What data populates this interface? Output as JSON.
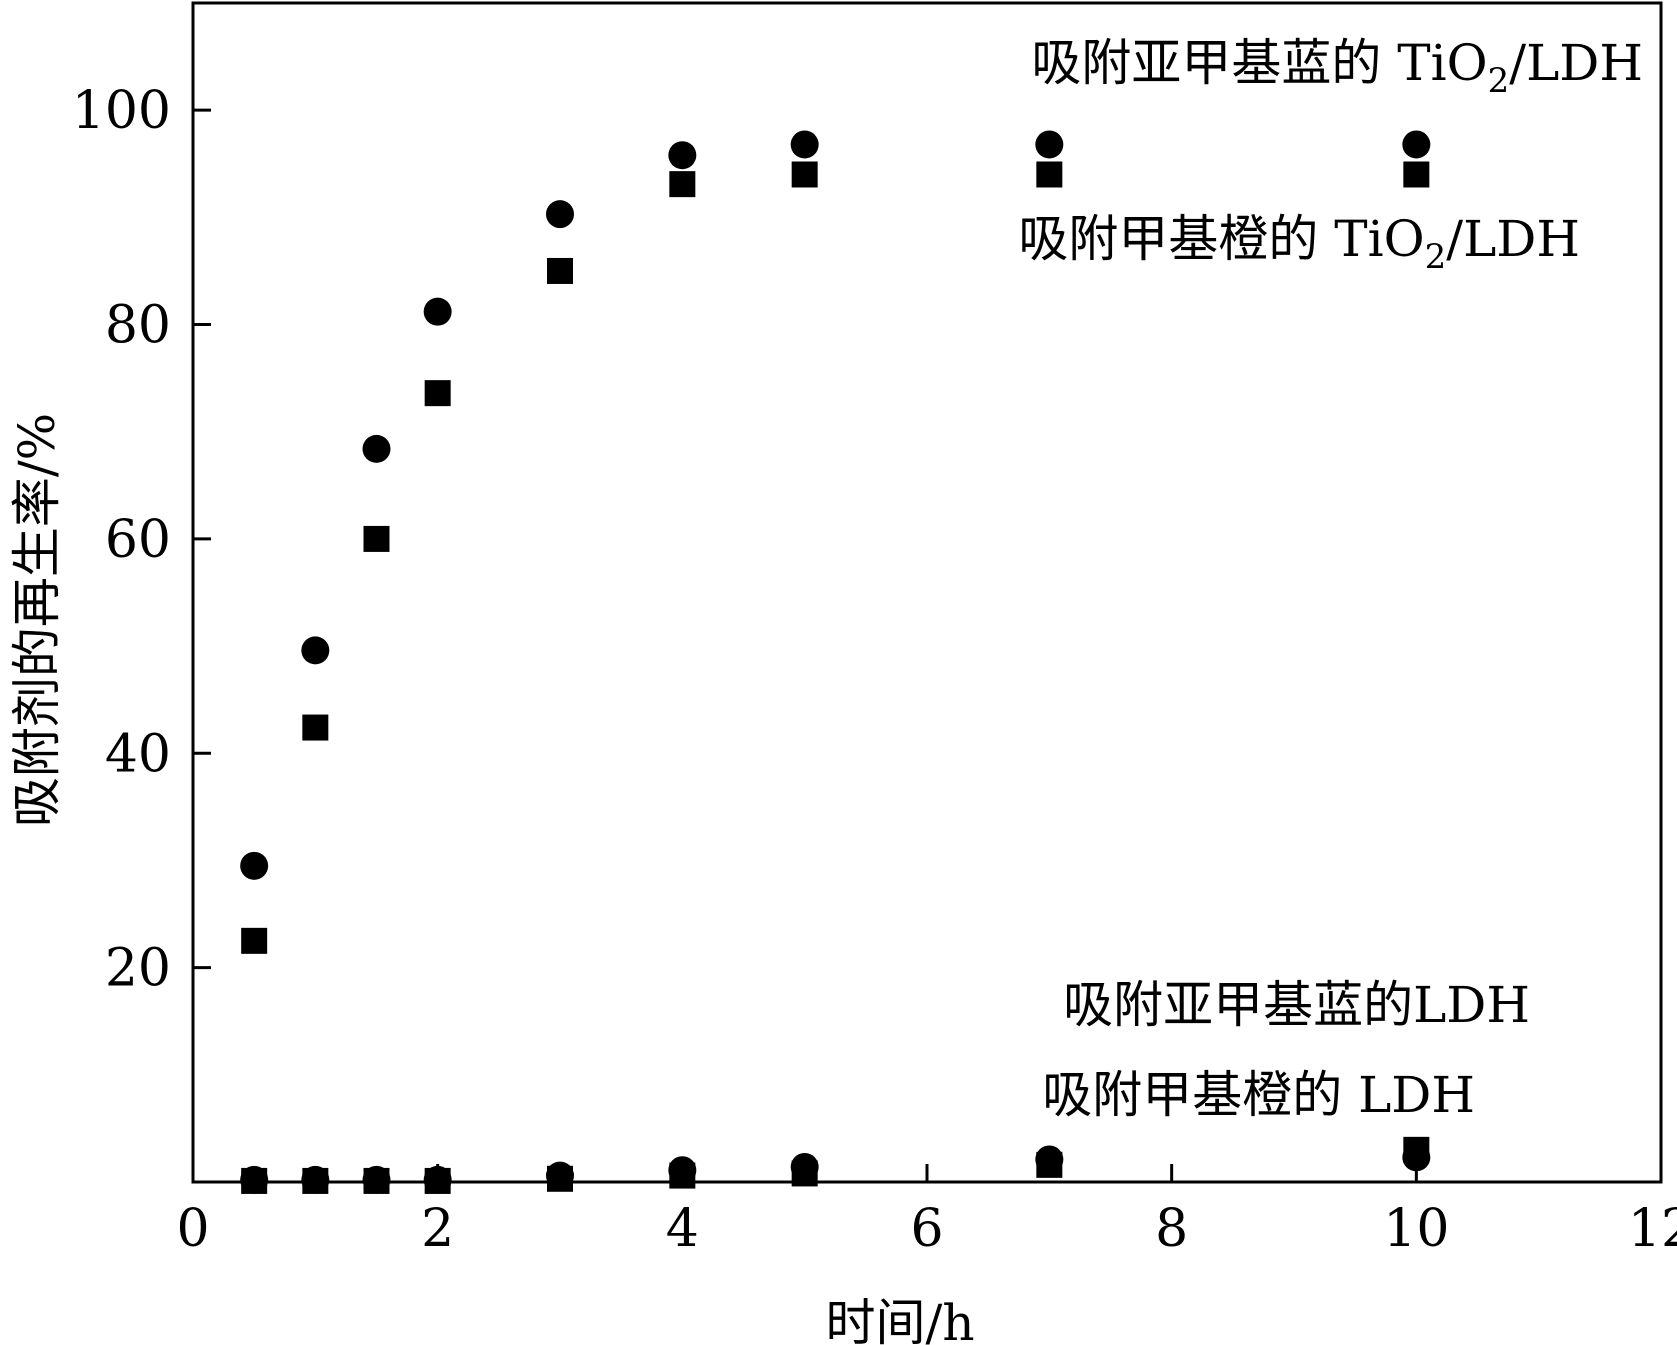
{
  "chart_data": {
    "type": "scatter",
    "xlabel": "时间/h",
    "ylabel": "吸附剂的再生率/%",
    "xlim": [
      0,
      12
    ],
    "ylim": [
      0,
      110
    ],
    "x_ticks": [
      0,
      2,
      4,
      6,
      8,
      10,
      12
    ],
    "y_ticks": [
      20,
      40,
      60,
      80,
      100
    ],
    "x_tick_labels": [
      "0",
      "2",
      "4",
      "6",
      "8",
      "10",
      "12"
    ],
    "y_tick_labels": [
      "20",
      "40",
      "60",
      "80",
      "100"
    ],
    "grid": false,
    "series": [
      {
        "marker": "circle",
        "color": "#000000",
        "points": [
          [
            0.5,
            29.5
          ],
          [
            1.0,
            49.6
          ],
          [
            1.5,
            68.4
          ],
          [
            2.0,
            81.2
          ],
          [
            3.0,
            90.3
          ],
          [
            4.0,
            95.8
          ],
          [
            5.0,
            96.8
          ],
          [
            7.0,
            96.8
          ],
          [
            10.0,
            96.8
          ]
        ]
      },
      {
        "marker": "square",
        "color": "#000000",
        "points": [
          [
            0.5,
            22.5
          ],
          [
            1.0,
            42.4
          ],
          [
            1.5,
            60.0
          ],
          [
            2.0,
            73.6
          ],
          [
            3.0,
            85.0
          ],
          [
            4.0,
            93.1
          ],
          [
            5.0,
            94.0
          ],
          [
            7.0,
            94.0
          ],
          [
            10.0,
            94.0
          ]
        ]
      },
      {
        "marker": "circle",
        "color": "#000000",
        "points": [
          [
            0.5,
            0.2
          ],
          [
            1.0,
            0.2
          ],
          [
            1.5,
            0.2
          ],
          [
            2.0,
            0.2
          ],
          [
            3.0,
            0.6
          ],
          [
            4.0,
            1.1
          ],
          [
            5.0,
            1.4
          ],
          [
            7.0,
            2.1
          ],
          [
            10.0,
            2.3
          ]
        ]
      },
      {
        "marker": "square",
        "color": "#000000",
        "points": [
          [
            0.5,
            0.1
          ],
          [
            1.0,
            0.1
          ],
          [
            1.5,
            0.1
          ],
          [
            2.0,
            0.1
          ],
          [
            3.0,
            0.3
          ],
          [
            4.0,
            0.6
          ],
          [
            5.0,
            0.8
          ],
          [
            7.0,
            1.6
          ],
          [
            10.0,
            3.0
          ]
        ]
      }
    ],
    "annotations": [
      {
        "main": "吸附亚甲基蓝的 TiO",
        "sub": "2",
        "tail": "/LDH"
      },
      {
        "main": "吸附甲基橙的 TiO",
        "sub": "2",
        "tail": "/LDH"
      },
      {
        "main": "吸附亚甲基蓝的LDH",
        "sub": "",
        "tail": ""
      },
      {
        "main": "吸附甲基橙的 LDH",
        "sub": "",
        "tail": ""
      }
    ]
  }
}
